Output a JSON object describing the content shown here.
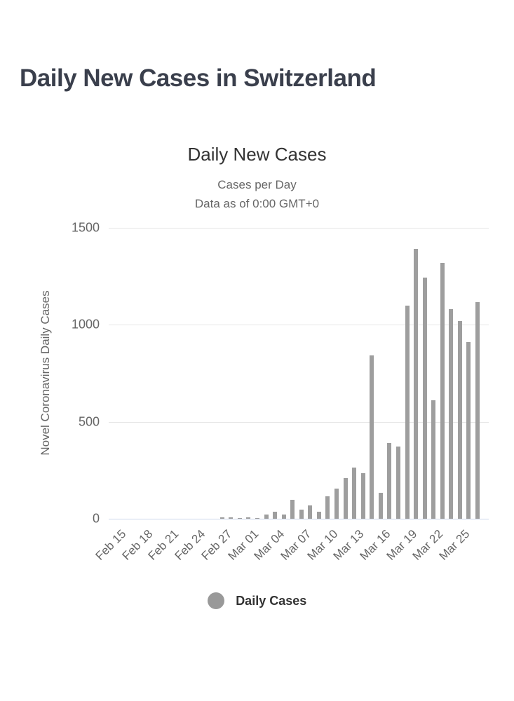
{
  "page": {
    "title": "Daily New Cases in Switzerland"
  },
  "chart": {
    "title": "Daily New Cases",
    "subtitle1": "Cases per Day",
    "subtitle2": "Data as of 0:00 GMT+0",
    "legend_label": "Daily Cases",
    "colors": {
      "bar": "#9e9e9e",
      "legend_marker": "#999999",
      "gridline": "#e6e6e6",
      "axis_line": "#ccd6eb",
      "chart_title": "#333333",
      "subtitle": "#666666",
      "tick_label": "#666666",
      "page_title": "#3a3f4c"
    }
  },
  "chart_data": {
    "type": "bar",
    "title": "Daily New Cases",
    "subtitle": [
      "Cases per Day",
      "Data as of 0:00 GMT+0"
    ],
    "xlabel": "",
    "ylabel": "Novel Coronavirus Daily Cases",
    "ylim": [
      0,
      1500
    ],
    "yticks": [
      0,
      500,
      1000,
      1500
    ],
    "grid": true,
    "legend": [
      "Daily Cases"
    ],
    "legend_position": "bottom",
    "bar_color": "#9e9e9e",
    "categories": [
      "Feb 15",
      "Feb 16",
      "Feb 17",
      "Feb 18",
      "Feb 19",
      "Feb 20",
      "Feb 21",
      "Feb 22",
      "Feb 23",
      "Feb 24",
      "Feb 25",
      "Feb 26",
      "Feb 27",
      "Feb 28",
      "Feb 29",
      "Mar 01",
      "Mar 02",
      "Mar 03",
      "Mar 04",
      "Mar 05",
      "Mar 06",
      "Mar 07",
      "Mar 08",
      "Mar 09",
      "Mar 10",
      "Mar 11",
      "Mar 12",
      "Mar 13",
      "Mar 14",
      "Mar 15",
      "Mar 16",
      "Mar 17",
      "Mar 18",
      "Mar 19",
      "Mar 20",
      "Mar 21",
      "Mar 22",
      "Mar 23",
      "Mar 24",
      "Mar 25",
      "Mar 26",
      "Mar 27"
    ],
    "values": [
      0,
      0,
      0,
      0,
      0,
      0,
      0,
      0,
      0,
      0,
      1,
      1,
      6,
      7,
      3,
      9,
      3,
      21,
      35,
      21,
      97,
      46,
      68,
      37,
      117,
      155,
      210,
      264,
      234,
      841,
      133,
      390,
      371,
      1098,
      1390,
      1242,
      612,
      1321,
      1082,
      1018,
      910,
      1117
    ],
    "xtick_every": 3,
    "xtick_labels": [
      "Feb 15",
      "Feb 18",
      "Feb 21",
      "Feb 24",
      "Feb 27",
      "Mar 01",
      "Mar 04",
      "Mar 07",
      "Mar 10",
      "Mar 13",
      "Mar 16",
      "Mar 19",
      "Mar 22",
      "Mar 25"
    ]
  }
}
